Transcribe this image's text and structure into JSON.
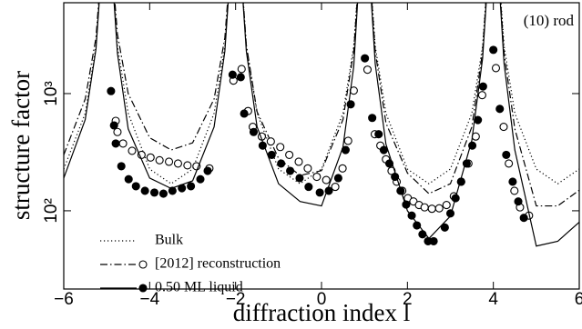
{
  "chart_data": {
    "type": "line",
    "y_label": "structure factor",
    "x_label": "diffraction index l",
    "annotation": "(10) rod",
    "xlim": [
      -6,
      6
    ],
    "xticks": [
      {
        "value": -6,
        "label": "−6"
      },
      {
        "value": -4,
        "label": "−4"
      },
      {
        "value": -2,
        "label": "−2"
      },
      0,
      2,
      4,
      6
    ],
    "ylim": [
      21.5,
      5960
    ],
    "y_log": true,
    "yticks": [
      {
        "value": 100,
        "label": "10²"
      },
      {
        "value": 1000,
        "label": "10³"
      }
    ],
    "legend": "lower left",
    "series": [
      {
        "name": "Bulk",
        "color": "#000000",
        "dash": "dotted",
        "line": {
          "x": [
            -6,
            -5.5,
            -5.25,
            -5.1,
            -4.9,
            -4.75,
            -4.5,
            -4,
            -3.5,
            -3,
            -2.5,
            -2.25,
            -2.1,
            -1.9,
            -1.75,
            -1.5,
            -1,
            -0.5,
            0,
            0.5,
            0.75,
            0.9,
            1.1,
            1.25,
            1.5,
            2,
            2.5,
            3,
            3.5,
            3.75,
            3.9,
            4.1,
            4.25,
            4.5,
            5,
            5.5,
            6
          ],
          "values": [
            227,
            680,
            2537,
            15550,
            15550,
            2537,
            680,
            227,
            170,
            227,
            680,
            2537,
            15550,
            15550,
            2537,
            680,
            227,
            170,
            227,
            680,
            2537,
            15550,
            15550,
            2537,
            680,
            227,
            170,
            227,
            680,
            2537,
            15550,
            15550,
            2537,
            680,
            227,
            170,
            227
          ]
        }
      },
      {
        "name": "[2012] reconstruction",
        "color": "#000000",
        "dash": "dashdot",
        "marker": "open",
        "line": {
          "x": [
            -6,
            -5.5,
            -5.25,
            -5.1,
            -4.9,
            -4.75,
            -4.5,
            -4,
            -3.5,
            -3,
            -2.5,
            -2.25,
            -2.1,
            -1.9,
            -1.75,
            -1.5,
            -1,
            -0.5,
            0,
            0.5,
            0.75,
            0.9,
            1.1,
            1.25,
            1.5,
            2,
            2.5,
            3,
            3.5,
            3.75,
            3.9,
            4.1,
            4.25,
            4.5,
            5,
            5.5,
            6
          ],
          "values": [
            300,
            900,
            3000,
            16000,
            16000,
            3200,
            1000,
            420,
            330,
            380,
            900,
            3000,
            16000,
            16000,
            2600,
            700,
            280,
            200,
            220,
            600,
            2300,
            15000,
            15000,
            2300,
            560,
            210,
            140,
            170,
            520,
            2300,
            15000,
            15000,
            2200,
            500,
            110,
            110,
            150
          ]
        },
        "points": {
          "x": [
            -4.79,
            -4.75,
            -4.62,
            -4.41,
            -4.19,
            -3.98,
            -3.77,
            -3.55,
            -3.34,
            -3.12,
            -2.91,
            -2.61,
            -2.05,
            -1.86,
            -1.71,
            -1.6,
            -1.39,
            -1.18,
            -0.96,
            -0.75,
            -0.53,
            -0.32,
            -0.11,
            0.11,
            0.32,
            0.49,
            0.62,
            0.75,
            1.07,
            1.24,
            1.37,
            1.5,
            1.63,
            1.75,
            1.88,
            2.01,
            2.14,
            2.27,
            2.4,
            2.57,
            2.74,
            2.91,
            3.08,
            3.25,
            3.42,
            3.59,
            3.74,
            4.06,
            4.24,
            4.36,
            4.49,
            4.62,
            4.83
          ],
          "values": [
            585,
            470,
            375,
            325,
            300,
            285,
            270,
            262,
            253,
            244,
            240,
            230,
            1290,
            1620,
            710,
            520,
            430,
            390,
            350,
            300,
            262,
            230,
            195,
            183,
            160,
            230,
            395,
            1060,
            1600,
            450,
            360,
            275,
            219,
            177,
            148,
            128,
            120,
            112,
            107,
            104,
            105,
            112,
            133,
            177,
            253,
            430,
            970,
            1650,
            520,
            253,
            148,
            107,
            91
          ]
        }
      },
      {
        "name": "0.50 ML liquid",
        "color": "#000000",
        "dash": "solid",
        "marker": "filled",
        "line": {
          "x": [
            -6,
            -5.5,
            -5.25,
            -5.1,
            -4.9,
            -4.75,
            -4.5,
            -4,
            -3.5,
            -3,
            -2.5,
            -2.25,
            -2.1,
            -1.9,
            -1.75,
            -1.5,
            -1,
            -0.5,
            0,
            0.5,
            0.75,
            0.9,
            1.1,
            1.25,
            1.5,
            2,
            2.5,
            3,
            3.5,
            3.75,
            3.9,
            4.1,
            4.25,
            4.5,
            5,
            5.5,
            6
          ],
          "values": [
            190,
            600,
            2400,
            15000,
            15000,
            2200,
            500,
            190,
            155,
            180,
            520,
            2300,
            15000,
            15000,
            2300,
            520,
            170,
            120,
            110,
            350,
            1700,
            14000,
            14000,
            1800,
            370,
            100,
            58,
            90,
            400,
            2000,
            14000,
            14000,
            1800,
            330,
            50,
            55,
            80
          ]
        },
        "points": {
          "x": [
            -4.9,
            -4.83,
            -4.79,
            -4.66,
            -4.49,
            -4.32,
            -4.11,
            -3.89,
            -3.68,
            -3.47,
            -3.25,
            -3.04,
            -2.82,
            -2.65,
            -2.07,
            -1.88,
            -1.8,
            -1.58,
            -1.37,
            -1.16,
            -0.94,
            -0.73,
            -0.51,
            -0.3,
            -0.04,
            0.17,
            0.39,
            0.56,
            0.68,
            1.01,
            1.18,
            1.33,
            1.45,
            1.58,
            1.71,
            1.84,
            1.97,
            2.1,
            2.22,
            2.35,
            2.48,
            2.61,
            2.87,
            3.0,
            3.12,
            3.25,
            3.38,
            3.51,
            3.64,
            3.76,
            4.0,
            4.15,
            4.3,
            4.45,
            4.58,
            4.71
          ],
          "values": [
            1050,
            535,
            375,
            240,
            186,
            162,
            148,
            143,
            140,
            148,
            156,
            162,
            186,
            219,
            1450,
            1380,
            675,
            470,
            360,
            300,
            253,
            219,
            190,
            160,
            143,
            148,
            190,
            330,
            810,
            2000,
            620,
            450,
            330,
            253,
            195,
            148,
            113,
            91,
            75,
            63,
            55,
            55,
            72,
            95,
            128,
            177,
            253,
            360,
            595,
            1150,
            2360,
            740,
            300,
            177,
            120,
            87
          ]
        }
      }
    ]
  }
}
